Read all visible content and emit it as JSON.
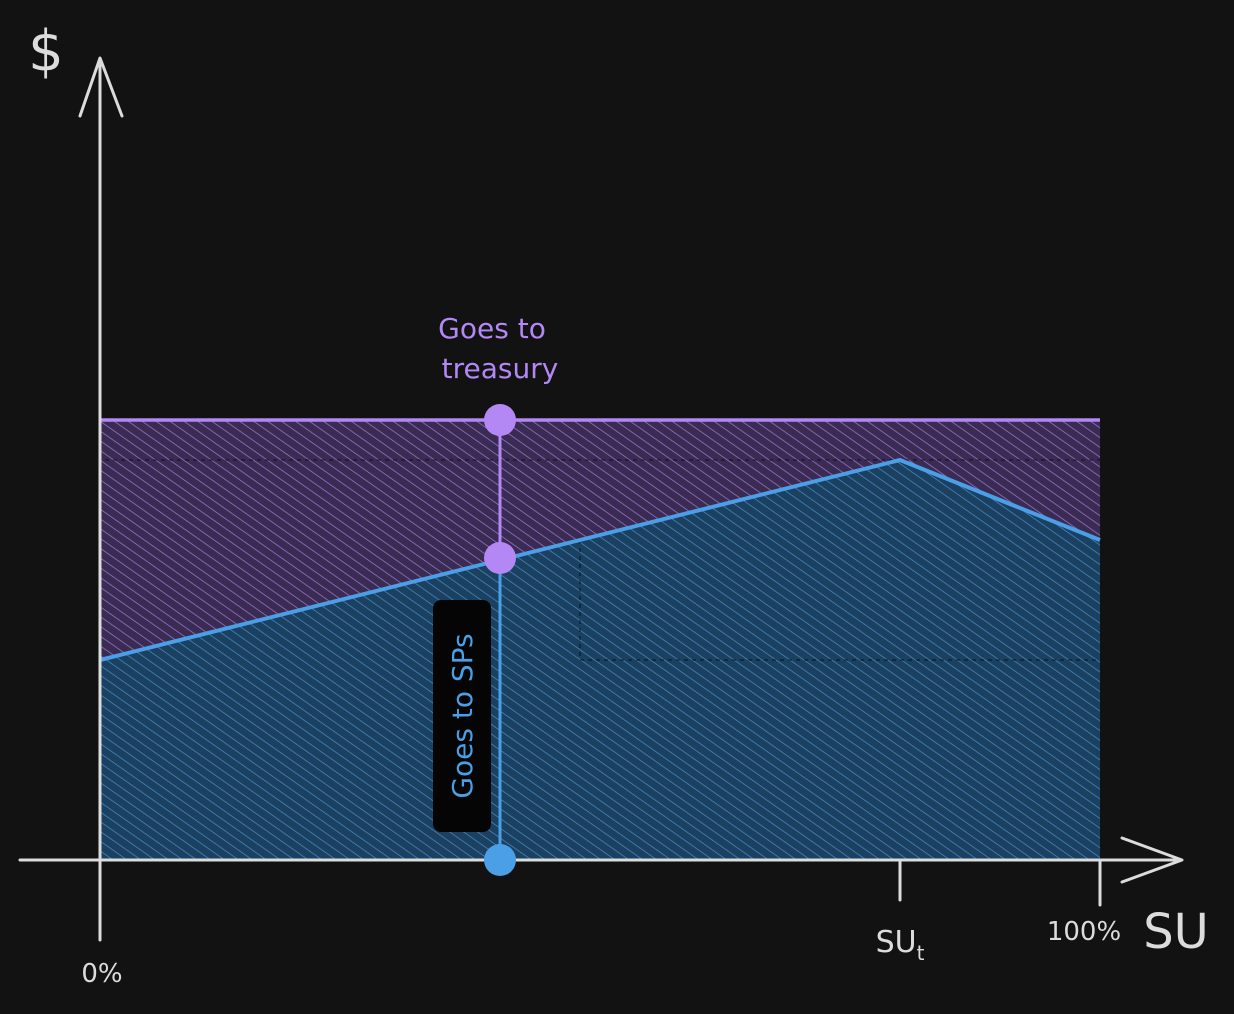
{
  "colors": {
    "background": "#121212",
    "axis": "#dcdcdc",
    "treasury": "#b388f5",
    "sps": "#4a9fe6",
    "label_box": "#050505"
  },
  "axes": {
    "y_symbol": "$",
    "x_symbol": "SU",
    "x_start_label": "0%",
    "x_threshold_label": "SU",
    "x_threshold_subscript": "t",
    "x_end_label": "100%"
  },
  "regions": {
    "treasury_label_line1": "Goes to",
    "treasury_label_line2": "treasury",
    "sps_label": "Goes to SPs"
  },
  "icons": {
    "treasury_marker": "circle",
    "sps_marker": "circle"
  }
}
